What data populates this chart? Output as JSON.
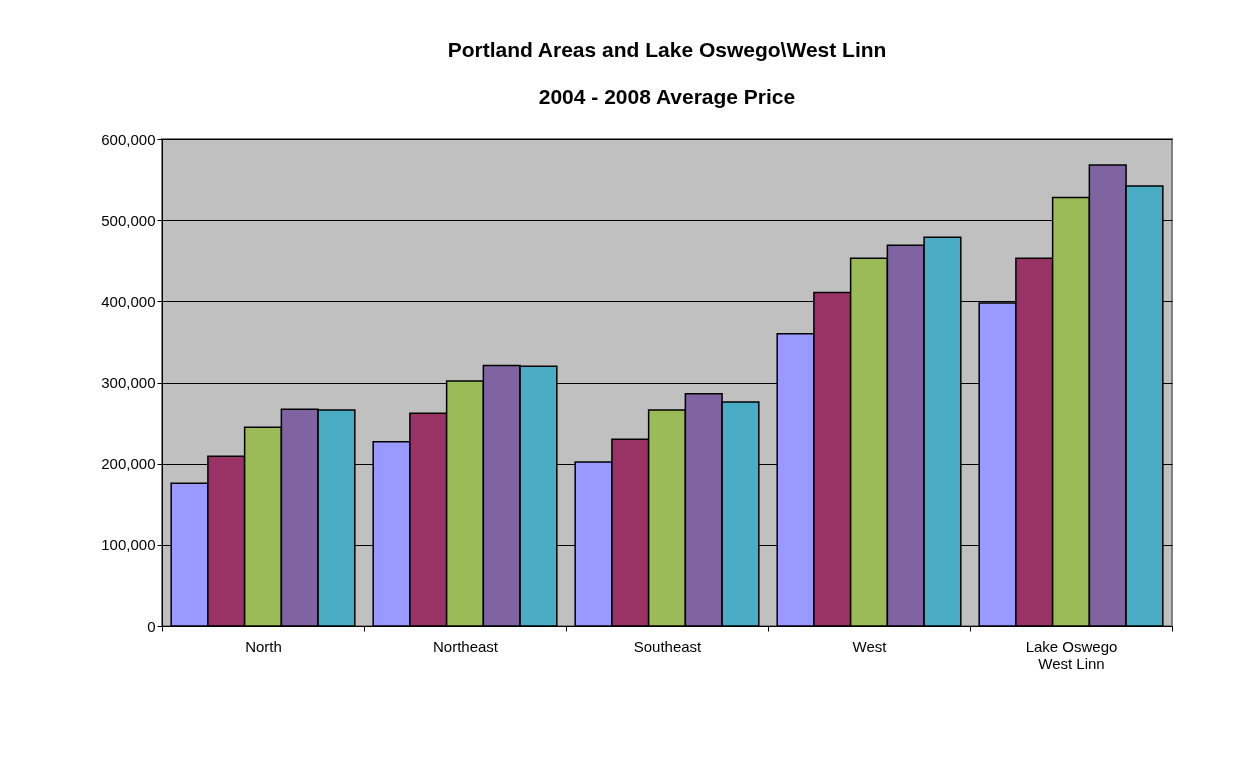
{
  "chart_data": {
    "type": "bar",
    "title": "Portland  Areas and Lake Oswego\\West Linn",
    "subtitle": "2004 - 2008 Average Price",
    "categories": [
      "North",
      "Northeast",
      "Southeast",
      "West",
      "Lake Oswego\nWest Linn"
    ],
    "series": [
      {
        "color": "#9999ff",
        "values": [
          176000,
          227000,
          202000,
          360000,
          398000
        ]
      },
      {
        "color": "#993366",
        "values": [
          209000,
          262000,
          230000,
          411000,
          453000
        ]
      },
      {
        "color": "#9bbb59",
        "values": [
          245000,
          302000,
          266000,
          453000,
          528000
        ]
      },
      {
        "color": "#8064a2",
        "values": [
          267000,
          321000,
          286000,
          469000,
          568000
        ]
      },
      {
        "color": "#4bacc6",
        "values": [
          266000,
          320000,
          276000,
          479000,
          542000
        ]
      }
    ],
    "ylim": [
      0,
      600000
    ],
    "yticks": [
      0,
      {
        "value": 100000,
        "label": "100,000"
      },
      {
        "value": 200000,
        "label": "200,000"
      },
      {
        "value": 300000,
        "label": "300,000"
      },
      {
        "value": 400000,
        "label": "400,000"
      },
      {
        "value": 500000,
        "label": "500,000"
      },
      {
        "value": 600000,
        "label": "600,000"
      }
    ],
    "grid": "y",
    "legend": false
  }
}
